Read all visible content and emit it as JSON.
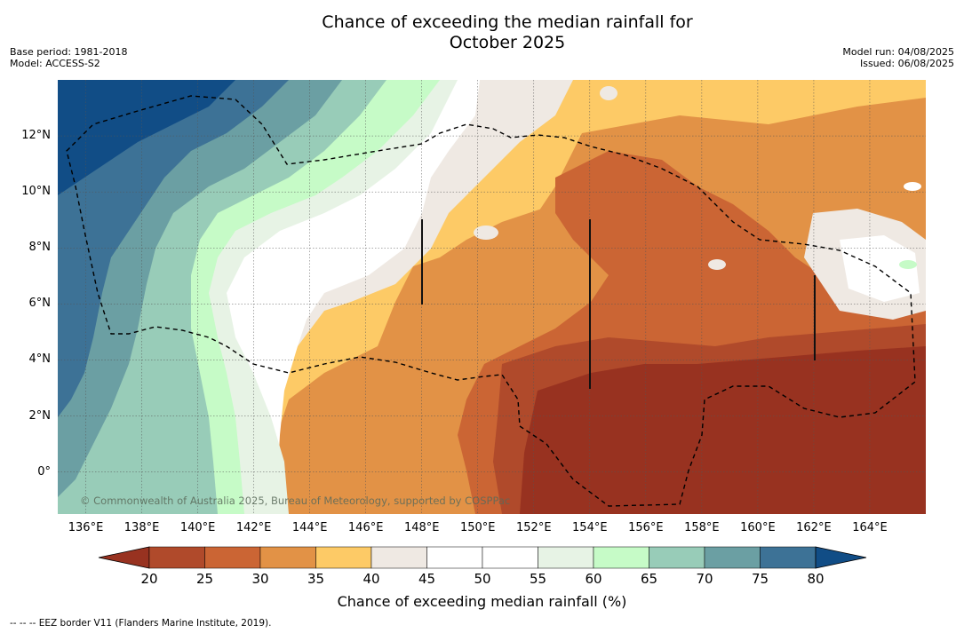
{
  "header": {
    "title_line1": "Chance of exceeding the median rainfall for",
    "title_line2": "October 2025",
    "base_period": "Base period: 1981-2018",
    "model": "Model: ACCESS-S2",
    "model_run": "Model run: 04/08/2025",
    "issued": "Issued: 06/08/2025"
  },
  "map": {
    "copyright": "© Commonwealth of Australia 2025, Bureau of Meteorology, supported by COSPPac",
    "x_ticks": [
      "136°E",
      "138°E",
      "140°E",
      "142°E",
      "144°E",
      "146°E",
      "148°E",
      "150°E",
      "152°E",
      "154°E",
      "156°E",
      "158°E",
      "160°E",
      "162°E",
      "164°E"
    ],
    "y_ticks": [
      "12°N",
      "10°N",
      "8°N",
      "6°N",
      "4°N",
      "2°N",
      "0°"
    ],
    "lon_range": [
      135,
      166
    ],
    "lat_range": [
      -1.5,
      14
    ]
  },
  "colorbar": {
    "title": "Chance of exceeding median rainfall (%)",
    "ticks": [
      "20",
      "25",
      "30",
      "35",
      "40",
      "45",
      "50",
      "55",
      "60",
      "65",
      "70",
      "75",
      "80"
    ],
    "colors": [
      "#983220",
      "#b04a2b",
      "#cb6534",
      "#e29246",
      "#fdca66",
      "#efe9e3",
      "#ffffff",
      "#ffffff",
      "#e7f3e5",
      "#c6fbc7",
      "#98ccb8",
      "#6b9fa3",
      "#3d7296",
      "#114d86"
    ]
  },
  "footer": {
    "eez_note": "--  --  -- EEZ border V11 (Flanders Marine Institute, 2019)."
  }
}
